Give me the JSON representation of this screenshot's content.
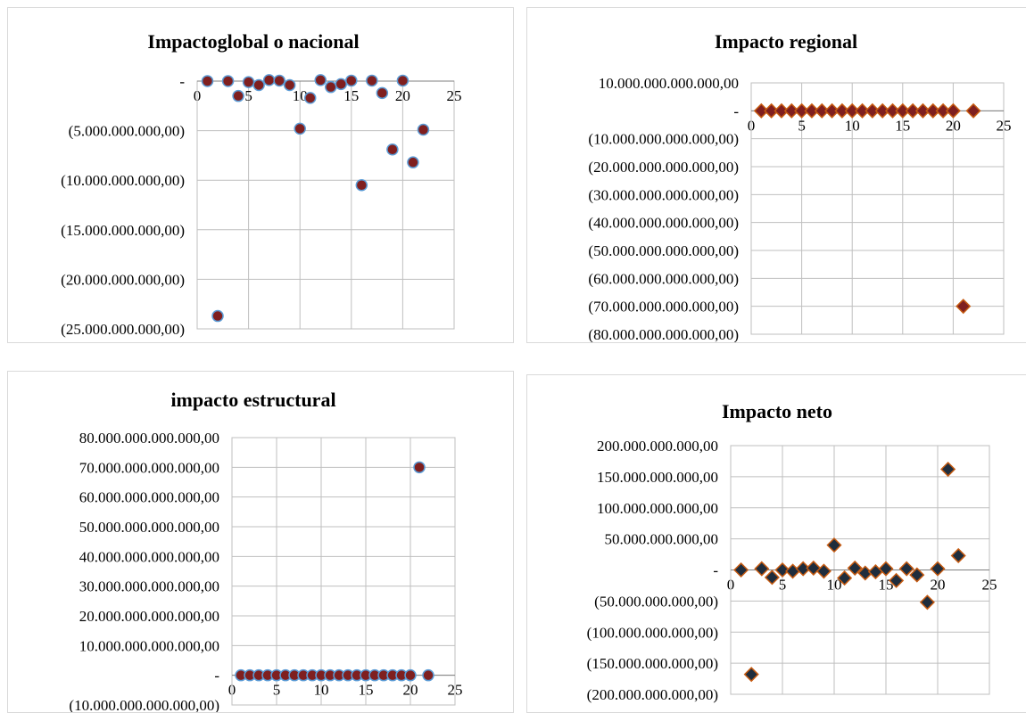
{
  "chart_data": [
    {
      "type": "scatter",
      "title": "Impactoglobal o nacional",
      "marker": "circle",
      "marker_fill": "#7f1f1f",
      "marker_stroke": "#5b9bd5",
      "x_ticks": [
        0,
        5,
        10,
        15,
        20,
        25
      ],
      "xlim": [
        0,
        25
      ],
      "ylim": [
        -25000000000,
        0
      ],
      "y_ticks": [
        0,
        -5000000000,
        -10000000000,
        -15000000000,
        -20000000000,
        -25000000000
      ],
      "y_tick_labels": [
        "-",
        "(5.000.000.000,00)",
        "(10.000.000.000,00)",
        "(15.000.000.000,00)",
        "(20.000.000.000,00)",
        "(25.000.000.000,00)"
      ],
      "x": [
        1,
        2,
        3,
        4,
        5,
        6,
        7,
        8,
        9,
        10,
        11,
        12,
        13,
        14,
        15,
        16,
        17,
        18,
        19,
        20,
        21,
        22
      ],
      "y": [
        0,
        -23700000000,
        0,
        -1500000000,
        -100000000,
        -400000000,
        100000000,
        50000000,
        -400000000,
        -4800000000,
        -1700000000,
        100000000,
        -600000000,
        -300000000,
        50000000,
        -10500000000,
        50000000,
        -1200000000,
        -6900000000,
        50000000,
        -8200000000,
        -4900000000
      ]
    },
    {
      "type": "scatter",
      "title": "Impacto regional",
      "marker": "diamond",
      "marker_fill": "#7f1f1f",
      "marker_stroke": "#c55a11",
      "x_ticks": [
        0,
        5,
        10,
        15,
        20,
        25
      ],
      "xlim": [
        0,
        25
      ],
      "ylim": [
        -80000000000000,
        10000000000000
      ],
      "y_ticks": [
        10000000000000,
        0,
        -10000000000000,
        -20000000000000,
        -30000000000000,
        -40000000000000,
        -50000000000000,
        -60000000000000,
        -70000000000000,
        -80000000000000
      ],
      "y_tick_labels": [
        "10.000.000.000.000,00",
        "-",
        "(10.000.000.000.000,00)",
        "(20.000.000.000.000,00)",
        "(30.000.000.000.000,00)",
        "(40.000.000.000.000,00)",
        "(50.000.000.000.000,00)",
        "(60.000.000.000.000,00)",
        "(70.000.000.000.000,00)",
        "(80.000.000.000.000,00)"
      ],
      "x": [
        1,
        2,
        3,
        4,
        5,
        6,
        7,
        8,
        9,
        10,
        11,
        12,
        13,
        14,
        15,
        16,
        17,
        18,
        19,
        20,
        21,
        22
      ],
      "y": [
        0,
        0,
        0,
        0,
        0,
        0,
        0,
        0,
        0,
        0,
        0,
        0,
        0,
        0,
        0,
        0,
        0,
        0,
        0,
        0,
        -70000000000000,
        0
      ]
    },
    {
      "type": "scatter",
      "title": "impacto estructural",
      "marker": "circle",
      "marker_fill": "#7f1f1f",
      "marker_stroke": "#5b9bd5",
      "x_ticks": [
        0,
        5,
        10,
        15,
        20,
        25
      ],
      "xlim": [
        0,
        25
      ],
      "ylim": [
        -10000000000000,
        80000000000000
      ],
      "y_ticks": [
        80000000000000,
        70000000000000,
        60000000000000,
        50000000000000,
        40000000000000,
        30000000000000,
        20000000000000,
        10000000000000,
        0,
        -10000000000000
      ],
      "y_tick_labels": [
        "80.000.000.000.000,00",
        "70.000.000.000.000,00",
        "60.000.000.000.000,00",
        "50.000.000.000.000,00",
        "40.000.000.000.000,00",
        "30.000.000.000.000,00",
        "20.000.000.000.000,00",
        "10.000.000.000.000,00",
        "-",
        "(10.000.000.000.000,00)"
      ],
      "x": [
        1,
        2,
        3,
        4,
        5,
        6,
        7,
        8,
        9,
        10,
        11,
        12,
        13,
        14,
        15,
        16,
        17,
        18,
        19,
        20,
        21,
        22
      ],
      "y": [
        0,
        0,
        0,
        0,
        0,
        0,
        0,
        0,
        0,
        0,
        0,
        0,
        0,
        0,
        0,
        0,
        0,
        0,
        0,
        0,
        70000000000000,
        0
      ]
    },
    {
      "type": "scatter",
      "title": "Impacto neto",
      "marker": "diamond",
      "marker_fill": "#1f2d3d",
      "marker_stroke": "#c55a11",
      "x_ticks": [
        0,
        5,
        10,
        15,
        20,
        25
      ],
      "xlim": [
        0,
        25
      ],
      "ylim": [
        -200000000000,
        200000000000
      ],
      "y_ticks": [
        200000000000,
        150000000000,
        100000000000,
        50000000000,
        0,
        -50000000000,
        -100000000000,
        -150000000000,
        -200000000000
      ],
      "y_tick_labels": [
        "200.000.000.000,00",
        "150.000.000.000,00",
        "100.000.000.000,00",
        "50.000.000.000,00",
        "-",
        "(50.000.000.000,00)",
        "(100.000.000.000,00)",
        "(150.000.000.000,00)",
        "(200.000.000.000,00)"
      ],
      "x": [
        1,
        2,
        3,
        4,
        5,
        6,
        7,
        8,
        9,
        10,
        11,
        12,
        13,
        14,
        15,
        16,
        17,
        18,
        19,
        20,
        21,
        22
      ],
      "y": [
        0,
        -168000000000,
        2000000000,
        -12000000000,
        0,
        -2000000000,
        2000000000,
        3000000000,
        -2000000000,
        40000000000,
        -13000000000,
        3000000000,
        -5000000000,
        -3000000000,
        2000000000,
        -17000000000,
        2000000000,
        -8000000000,
        -52000000000,
        2000000000,
        162000000000,
        23000000000
      ]
    }
  ]
}
